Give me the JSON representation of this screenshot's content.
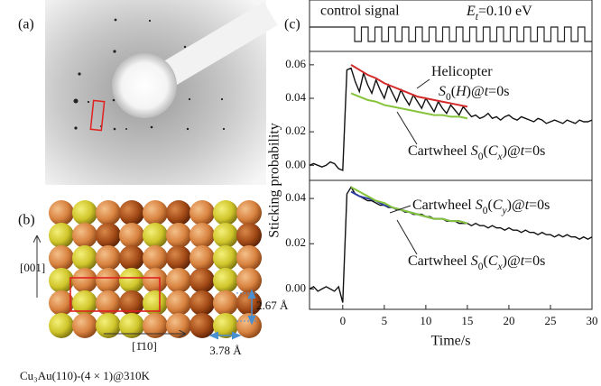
{
  "panel_labels": {
    "a": "(a)",
    "b": "(b)",
    "c": "(c)"
  },
  "lattice": {
    "axis_vertical": "[001]",
    "axis_horizontal": "[1̄10]",
    "spacing_vertical": "2.67 Å",
    "spacing_horizontal": "3.78 Å",
    "caption": "Cu₃Au(110)-(4 × 1)@310K"
  },
  "control": {
    "label": "control signal",
    "energy": [
      {
        "text": "E",
        "italic": true
      },
      {
        "text": "t",
        "italic": true,
        "sub": true
      },
      {
        "text": "=0.10 eV"
      }
    ]
  },
  "ylabel": "Sticking probability",
  "chart_data": [
    {
      "type": "line",
      "x": [
        -4,
        -3.5,
        -3,
        -2.5,
        -2,
        -1.5,
        -1,
        -0.5,
        0,
        0.5,
        1,
        1.5,
        2,
        2.5,
        3,
        3.5,
        4,
        4.5,
        5,
        5.5,
        6,
        6.5,
        7,
        7.5,
        8,
        8.5,
        9,
        9.5,
        10,
        10.5,
        11,
        11.5,
        12,
        12.5,
        13,
        13.5,
        14,
        14.5,
        15,
        15.5,
        16,
        16.5,
        17,
        17.5,
        18,
        18.5,
        19,
        19.5,
        20,
        20.5,
        21,
        21.5,
        22,
        22.5,
        23,
        23.5,
        24,
        24.5,
        25,
        25.5,
        26,
        26.5,
        27,
        27.5,
        28,
        28.5,
        29,
        29.5,
        30
      ],
      "xlim": [
        -4,
        30
      ],
      "ylim": [
        -0.009,
        0.068
      ],
      "yticks": [
        {
          "value": 0,
          "label": "0.00"
        },
        0.02,
        0.04,
        0.06
      ],
      "series": [
        {
          "color": "#111111",
          "values": [
            0,
            0.001,
            0,
            -0.001,
            0,
            0.002,
            0.001,
            -0.002,
            -0.003,
            0.057,
            0.058,
            0.05,
            0.044,
            0.055,
            0.048,
            0.043,
            0.051,
            0.045,
            0.04,
            0.048,
            0.043,
            0.038,
            0.045,
            0.04,
            0.036,
            0.042,
            0.038,
            0.034,
            0.04,
            0.036,
            0.032,
            0.038,
            0.034,
            0.031,
            0.036,
            0.033,
            0.03,
            0.035,
            0.032,
            0.029,
            0.03,
            0.028,
            0.029,
            0.031,
            0.028,
            0.029,
            0.027,
            0.029,
            0.03,
            0.028,
            0.027,
            0.029,
            0.028,
            0.027,
            0.026,
            0.028,
            0.027,
            0.025,
            0.026,
            0.027,
            0.026,
            0.025,
            0.027,
            0.026,
            0.025,
            0.027,
            0.026,
            0.026,
            0.027
          ]
        },
        {
          "color": "#d42a2a",
          "x": [
            1,
            2,
            3,
            4,
            5,
            6,
            7,
            8,
            9,
            10,
            11,
            12,
            13,
            14,
            15
          ],
          "values": [
            0.06,
            0.057,
            0.054,
            0.052,
            0.049,
            0.047,
            0.045,
            0.043,
            0.041,
            0.04,
            0.039,
            0.038,
            0.037,
            0.036,
            0.035
          ]
        },
        {
          "color": "#86c43c",
          "x": [
            1,
            2,
            3,
            4,
            5,
            6,
            7,
            8,
            9,
            10,
            11,
            12,
            13,
            14,
            15
          ],
          "values": [
            0.043,
            0.041,
            0.039,
            0.038,
            0.036,
            0.035,
            0.034,
            0.033,
            0.032,
            0.031,
            0.03,
            0.03,
            0.029,
            0.029,
            0.028
          ]
        }
      ],
      "annotations": [
        [
          {
            "text": "Helicopter"
          }
        ],
        [
          {
            "text": "S",
            "italic": true
          },
          {
            "text": "0",
            "sub": true
          },
          {
            "text": "("
          },
          {
            "text": "H",
            "italic": true
          },
          {
            "text": ")@"
          },
          {
            "text": "t",
            "italic": true
          },
          {
            "text": "=0s"
          }
        ],
        [
          {
            "text": "Cartwheel "
          },
          {
            "text": "S",
            "italic": true
          },
          {
            "text": "0",
            "sub": true
          },
          {
            "text": "("
          },
          {
            "text": "C",
            "italic": true
          },
          {
            "text": "x",
            "italic": true,
            "sub": true
          },
          {
            "text": ")@"
          },
          {
            "text": "t",
            "italic": true
          },
          {
            "text": "=0s"
          }
        ]
      ]
    },
    {
      "type": "line",
      "x": [
        -4,
        -3.5,
        -3,
        -2.5,
        -2,
        -1.5,
        -1,
        -0.5,
        0,
        0.5,
        1,
        1.5,
        2,
        2.5,
        3,
        3.5,
        4,
        4.5,
        5,
        5.5,
        6,
        6.5,
        7,
        7.5,
        8,
        8.5,
        9,
        9.5,
        10,
        10.5,
        11,
        11.5,
        12,
        12.5,
        13,
        13.5,
        14,
        14.5,
        15,
        15.5,
        16,
        16.5,
        17,
        17.5,
        18,
        18.5,
        19,
        19.5,
        20,
        20.5,
        21,
        21.5,
        22,
        22.5,
        23,
        23.5,
        24,
        24.5,
        25,
        25.5,
        26,
        26.5,
        27,
        27.5,
        28,
        28.5,
        29,
        29.5,
        30
      ],
      "xlim": [
        -4,
        30
      ],
      "ylim": [
        -0.009,
        0.048
      ],
      "xticks": [
        0,
        5,
        10,
        15,
        20,
        25,
        30
      ],
      "yticks": [
        {
          "value": 0,
          "label": "0.00"
        },
        0.02,
        0.04
      ],
      "xlabel": "Time/s",
      "series": [
        {
          "color": "#111111",
          "values": [
            0,
            0.001,
            -0.001,
            0,
            0.001,
            0,
            -0.001,
            0.001,
            -0.006,
            0.042,
            0.045,
            0.042,
            0.041,
            0.04,
            0.039,
            0.039,
            0.038,
            0.037,
            0.037,
            0.036,
            0.036,
            0.035,
            0.035,
            0.034,
            0.034,
            0.033,
            0.033,
            0.033,
            0.032,
            0.032,
            0.031,
            0.031,
            0.031,
            0.03,
            0.03,
            0.03,
            0.029,
            0.029,
            0.029,
            0.028,
            0.029,
            0.028,
            0.028,
            0.027,
            0.028,
            0.027,
            0.027,
            0.026,
            0.027,
            0.026,
            0.026,
            0.025,
            0.026,
            0.025,
            0.025,
            0.024,
            0.025,
            0.024,
            0.024,
            0.023,
            0.024,
            0.023,
            0.024,
            0.023,
            0.023,
            0.022,
            0.023,
            0.022,
            0.023
          ]
        },
        {
          "color": "#2f3fa0",
          "x": [
            1,
            2,
            3,
            4,
            5,
            6,
            7,
            8,
            9,
            10,
            11,
            12,
            13,
            14,
            15
          ],
          "values": [
            0.043,
            0.041,
            0.04,
            0.039,
            0.037,
            0.036,
            0.035,
            0.034,
            0.033,
            0.032,
            0.031,
            0.031,
            0.03,
            0.03,
            0.029
          ]
        },
        {
          "color": "#86c43c",
          "x": [
            1,
            2,
            3,
            4,
            5,
            6,
            7,
            8,
            9,
            10,
            11,
            12,
            13,
            14,
            15
          ],
          "values": [
            0.045,
            0.043,
            0.041,
            0.039,
            0.038,
            0.036,
            0.035,
            0.034,
            0.033,
            0.032,
            0.031,
            0.031,
            0.03,
            0.03,
            0.029
          ]
        }
      ],
      "annotations": [
        [
          {
            "text": "Cartwheel "
          },
          {
            "text": "S",
            "italic": true
          },
          {
            "text": "0",
            "sub": true
          },
          {
            "text": "("
          },
          {
            "text": "C",
            "italic": true
          },
          {
            "text": "y",
            "italic": true,
            "sub": true
          },
          {
            "text": ")@"
          },
          {
            "text": "t",
            "italic": true
          },
          {
            "text": "=0s"
          }
        ],
        [
          {
            "text": "Cartwheel "
          },
          {
            "text": "S",
            "italic": true
          },
          {
            "text": "0",
            "sub": true
          },
          {
            "text": "("
          },
          {
            "text": "C",
            "italic": true
          },
          {
            "text": "x",
            "italic": true,
            "sub": true
          },
          {
            "text": ")@"
          },
          {
            "text": "t",
            "italic": true
          },
          {
            "text": "=0s"
          }
        ]
      ]
    }
  ]
}
